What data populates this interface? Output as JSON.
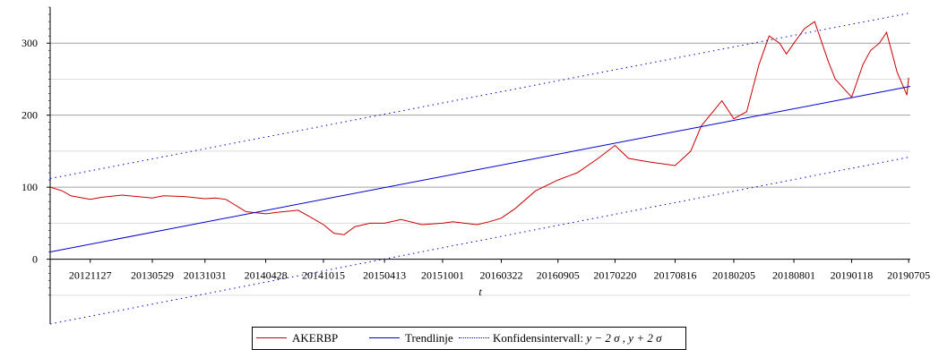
{
  "chart_data": {
    "type": "line",
    "title": "",
    "xlabel": "t",
    "ylabel": "",
    "x_tick_labels": [
      "20121127",
      "20130529",
      "20131031",
      "20140428",
      "20141015",
      "20150413",
      "20151001",
      "20160322",
      "20160905",
      "20170220",
      "20170816",
      "20180205",
      "20180801",
      "20190118",
      "20190705"
    ],
    "y_tick_labels": [
      "0",
      "100",
      "200",
      "300"
    ],
    "ylim": [
      -90,
      350
    ],
    "grid": "horizontal",
    "legend_position": "bottom-center",
    "x_range": [
      "20120801",
      "20190710"
    ],
    "series": [
      {
        "name": "AKERBP",
        "color": "#cc0000",
        "style": "solid",
        "x": [
          "20120801",
          "20120905",
          "20121001",
          "20121127",
          "20130101",
          "20130301",
          "20130529",
          "20130701",
          "20130901",
          "20131031",
          "20131201",
          "20140101",
          "20140301",
          "20140428",
          "20140601",
          "20140801",
          "20140901",
          "20141015",
          "20141115",
          "20141215",
          "20150115",
          "20150301",
          "20150413",
          "20150601",
          "20150801",
          "20151001",
          "20151101",
          "20160110",
          "20160215",
          "20160322",
          "20160501",
          "20160701",
          "20160905",
          "20161101",
          "20170101",
          "20170220",
          "20170401",
          "20170601",
          "20170816",
          "20171001",
          "20171101",
          "20180101",
          "20180205",
          "20180315",
          "20180420",
          "20180520",
          "20180620",
          "20180710",
          "20180801",
          "20180901",
          "20181001",
          "20181110",
          "20181201",
          "20190118",
          "20190220",
          "20190315",
          "20190410",
          "20190501",
          "20190601",
          "20190630",
          "20190705"
        ],
        "values": [
          100,
          95,
          88,
          83,
          86,
          89,
          85,
          88,
          87,
          84,
          85,
          83,
          66,
          63,
          65,
          68,
          60,
          48,
          36,
          34,
          45,
          50,
          50,
          55,
          48,
          50,
          52,
          48,
          52,
          57,
          70,
          95,
          110,
          120,
          140,
          158,
          140,
          135,
          130,
          150,
          185,
          220,
          195,
          205,
          270,
          310,
          300,
          285,
          300,
          320,
          330,
          275,
          250,
          225,
          270,
          290,
          300,
          315,
          260,
          228,
          252
        ]
      },
      {
        "name": "Trendlinje",
        "color": "#0000cc",
        "style": "solid",
        "x": [
          "20120801",
          "20190710"
        ],
        "values": [
          10,
          240
        ]
      },
      {
        "name": "Konfidensintervall",
        "color": "#0000cc",
        "style": "dotted",
        "x": [
          "20120801",
          "20190710"
        ],
        "values": [
          112,
          342
        ]
      },
      {
        "name": "Konfidensintervall",
        "color": "#0000cc",
        "style": "dotted",
        "x": [
          "20120801",
          "20190710"
        ],
        "values": [
          -90,
          142
        ]
      }
    ]
  },
  "legend": {
    "items": [
      {
        "label": "AKERBP",
        "color": "#cc0000",
        "style": "solid"
      },
      {
        "label": "Trendlinje",
        "color": "#0000cc",
        "style": "solid"
      },
      {
        "label": "Konfidensintervall:",
        "math": "y − 2 σ , y + 2 σ",
        "color": "#0000cc",
        "style": "dotted"
      }
    ]
  }
}
